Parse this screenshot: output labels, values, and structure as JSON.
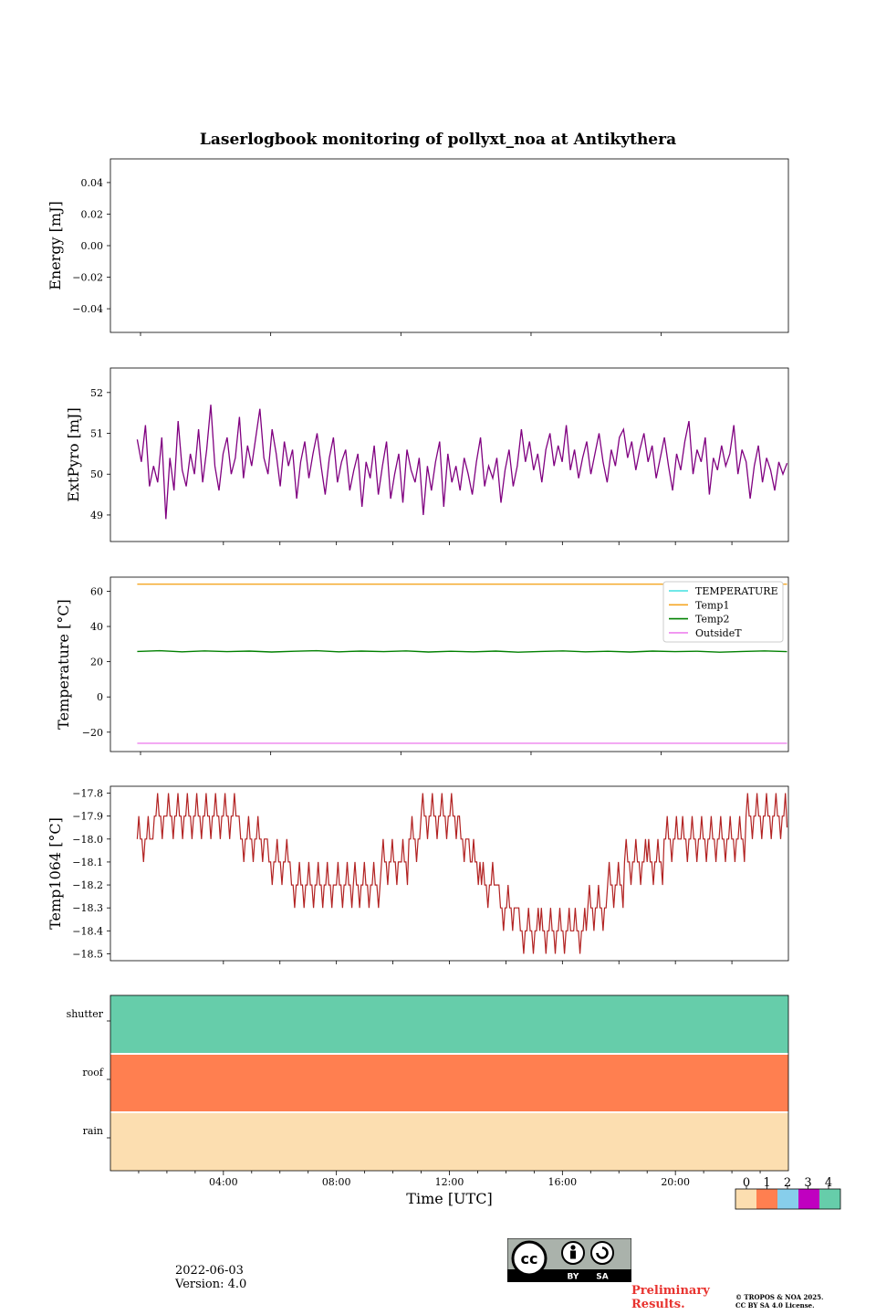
{
  "title": "Laserlogbook monitoring of pollyxt_noa at Antikythera",
  "date_label": "2022-06-03",
  "version_label": "Version: 4.0",
  "preliminary_line1": "Preliminary",
  "preliminary_line2": "Results.",
  "copyright_line1": "© TROPOS & NOA 2025.",
  "copyright_line2": "CC BY SA 4.0 License.",
  "license_badge": {
    "cc": "cc",
    "by": "BY",
    "sa": "SA"
  },
  "chart_data": [
    {
      "type": "line",
      "ylabel": "Energy [mJ]",
      "ylim": [
        -0.055,
        0.055
      ],
      "yticks": [
        0.04,
        0.02,
        0.0,
        -0.02,
        -0.04
      ],
      "ytick_labels": [
        "0.04",
        "0.02",
        "0.00",
        "−0.02",
        "−0.04"
      ],
      "series": []
    },
    {
      "type": "line",
      "ylabel": "ExtPyro [mJ]",
      "ylim": [
        48.35,
        52.6
      ],
      "yticks": [
        52,
        51,
        50,
        49
      ],
      "ytick_labels": [
        "52",
        "51",
        "50",
        "49"
      ],
      "color": "#800080",
      "series": [
        {
          "x_start": 0.95,
          "x_end": 23.95,
          "values": [
            50.85,
            50.3,
            51.2,
            49.7,
            50.2,
            49.8,
            50.9,
            48.9,
            50.4,
            49.6,
            51.3,
            50.1,
            49.7,
            50.5,
            50.0,
            51.1,
            49.8,
            50.6,
            51.7,
            50.2,
            49.6,
            50.5,
            50.9,
            50.0,
            50.4,
            51.4,
            49.9,
            50.7,
            50.2,
            50.9,
            51.6,
            50.4,
            50.0,
            51.1,
            50.5,
            49.7,
            50.8,
            50.2,
            50.6,
            49.4,
            50.3,
            50.8,
            49.9,
            50.5,
            51.0,
            50.2,
            49.5,
            50.4,
            50.9,
            49.8,
            50.3,
            50.6,
            49.6,
            50.1,
            50.5,
            49.2,
            50.3,
            49.9,
            50.7,
            49.5,
            50.2,
            50.8,
            49.4,
            50.0,
            50.5,
            49.3,
            50.6,
            50.1,
            49.8,
            50.4,
            49.0,
            50.2,
            49.6,
            50.3,
            50.8,
            49.2,
            50.5,
            49.8,
            50.2,
            49.6,
            50.4,
            50.0,
            49.5,
            50.3,
            50.9,
            49.7,
            50.2,
            49.9,
            50.4,
            49.3,
            50.1,
            50.6,
            49.7,
            50.2,
            51.1,
            50.3,
            50.8,
            50.1,
            50.5,
            49.8,
            50.6,
            51.0,
            50.2,
            50.7,
            50.3,
            51.2,
            50.1,
            50.6,
            49.9,
            50.4,
            50.8,
            50.0,
            50.5,
            51.0,
            50.3,
            49.8,
            50.6,
            50.2,
            50.9,
            51.1,
            50.4,
            50.8,
            50.1,
            50.6,
            51.0,
            50.3,
            50.7,
            49.9,
            50.4,
            50.9,
            50.2,
            49.6,
            50.5,
            50.1,
            50.8,
            51.3,
            50.0,
            50.6,
            50.3,
            50.9,
            49.5,
            50.4,
            50.1,
            50.7,
            50.2,
            50.5,
            51.2,
            50.0,
            50.6,
            50.3,
            49.4,
            50.2,
            50.7,
            49.8,
            50.4,
            50.1,
            49.6,
            50.3,
            50.0,
            50.27
          ]
        }
      ]
    },
    {
      "type": "line",
      "ylabel": "Temperature [°C]",
      "ylim": [
        -31,
        68
      ],
      "yticks": [
        60,
        40,
        20,
        0,
        -20
      ],
      "ytick_labels": [
        "60",
        "40",
        "20",
        "0",
        "−20"
      ],
      "legend_position": "upper-right",
      "series": [
        {
          "name": "TEMPERATURE",
          "color": "#40e0e0",
          "values": []
        },
        {
          "name": "Temp1",
          "color": "#f5a623",
          "values": [
            64,
            64
          ]
        },
        {
          "name": "Temp2",
          "color": "#008000",
          "values": [
            25.8,
            26.2,
            25.6,
            26.1,
            25.7,
            26.0,
            25.5,
            25.9,
            26.2,
            25.6,
            26.0,
            25.7,
            26.1,
            25.5,
            25.9,
            25.6,
            26.0,
            25.4,
            25.8,
            26.1,
            25.6,
            25.9,
            25.5,
            26.0,
            25.7,
            25.9,
            25.4,
            25.8,
            26.1,
            25.7
          ]
        },
        {
          "name": "OutsideT",
          "color": "#ee82ee",
          "values": [
            -26.3,
            -26.3
          ]
        }
      ],
      "x_start": 0.95,
      "x_end": 23.95
    },
    {
      "type": "line",
      "ylabel": "Temp1064 [°C]",
      "ylim": [
        -18.53,
        -17.77
      ],
      "yticks": [
        -17.8,
        -17.9,
        -18.0,
        -18.1,
        -18.2,
        -18.3,
        -18.4,
        -18.5
      ],
      "ytick_labels": [
        "−17.8",
        "−17.9",
        "−18.0",
        "−18.1",
        "−18.2",
        "−18.3",
        "−18.4",
        "−18.5"
      ],
      "color": "#b22222",
      "series": [
        {
          "x": [
            0.95,
            2.0,
            4.5,
            5.5,
            6.3,
            7.3,
            8.0,
            8.6,
            9.6,
            10.3,
            11.0,
            12.3,
            12.8,
            13.7,
            14.4,
            15.2,
            16.4,
            16.9,
            17.6,
            18.2,
            19.0,
            20.2,
            22.5,
            23.95
          ],
          "values": [
            -18.0,
            -17.9,
            -17.95,
            -18.05,
            -18.15,
            -18.2,
            -18.25,
            -18.2,
            -18.15,
            -18.1,
            -17.95,
            -17.95,
            -18.1,
            -18.25,
            -18.35,
            -18.4,
            -18.45,
            -18.35,
            -18.25,
            -18.15,
            -18.1,
            -18.0,
            -17.95,
            -17.95
          ]
        }
      ]
    },
    {
      "type": "heatmap",
      "x_ticks": [
        "04:00",
        "08:00",
        "12:00",
        "16:00",
        "20:00"
      ],
      "xlabel": "Time [UTC]",
      "rows": [
        {
          "label": "shutter",
          "value": 4
        },
        {
          "label": "roof",
          "value": 1
        },
        {
          "label": "rain",
          "value": 0
        }
      ],
      "colorbar": {
        "ticks": [
          "0",
          "1",
          "2",
          "3",
          "4"
        ],
        "colors": [
          "#fcdeb0",
          "#ff7f50",
          "#87ceeb",
          "#c000c0",
          "#66cdaa"
        ]
      }
    }
  ]
}
